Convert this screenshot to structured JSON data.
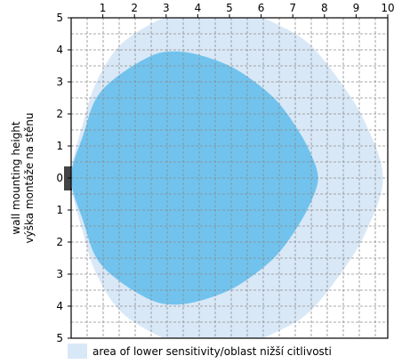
{
  "chart_data": {
    "type": "area",
    "x_ticks": [
      "1",
      "2",
      "3",
      "4",
      "5",
      "6",
      "7",
      "8",
      "9",
      "10"
    ],
    "y_ticks": [
      "5",
      "4",
      "3",
      "2",
      "1",
      "0",
      "1",
      "2",
      "3",
      "4",
      "5"
    ],
    "xlim": [
      0,
      10
    ],
    "ylim": [
      -5,
      5
    ],
    "grid": true,
    "ylabel_lines": [
      "wall mounting height",
      "výška montáže na stěnu"
    ],
    "series": [
      {
        "name": "area of lower sensitivity/oblast nižší citlivosti",
        "color": "#d9e8f7",
        "boundary": [
          [
            0.0,
            0.0
          ],
          [
            0.4,
            1.8
          ],
          [
            0.8,
            3.0
          ],
          [
            1.5,
            4.1
          ],
          [
            2.5,
            4.8
          ],
          [
            3.5,
            5.2
          ],
          [
            4.5,
            5.4
          ],
          [
            5.5,
            5.2
          ],
          [
            6.5,
            4.8
          ],
          [
            7.5,
            4.2
          ],
          [
            8.5,
            3.0
          ],
          [
            9.3,
            1.7
          ],
          [
            9.85,
            0.0
          ],
          [
            9.3,
            -1.7
          ],
          [
            8.5,
            -3.0
          ],
          [
            7.5,
            -4.2
          ],
          [
            6.5,
            -4.8
          ],
          [
            5.5,
            -5.2
          ],
          [
            4.5,
            -5.4
          ],
          [
            3.5,
            -5.2
          ],
          [
            2.5,
            -4.8
          ],
          [
            1.5,
            -4.1
          ],
          [
            0.8,
            -3.0
          ],
          [
            0.4,
            -1.8
          ]
        ]
      },
      {
        "color": "#71c3ee",
        "boundary": [
          [
            0.0,
            0.0
          ],
          [
            0.4,
            1.4
          ],
          [
            0.8,
            2.5
          ],
          [
            1.5,
            3.2
          ],
          [
            2.5,
            3.8
          ],
          [
            3.2,
            3.95
          ],
          [
            4.0,
            3.85
          ],
          [
            5.0,
            3.5
          ],
          [
            5.8,
            3.0
          ],
          [
            6.5,
            2.4
          ],
          [
            7.1,
            1.6
          ],
          [
            7.55,
            0.8
          ],
          [
            7.8,
            0.0
          ],
          [
            7.55,
            -0.8
          ],
          [
            7.1,
            -1.6
          ],
          [
            6.5,
            -2.4
          ],
          [
            5.8,
            -3.0
          ],
          [
            5.0,
            -3.5
          ],
          [
            4.0,
            -3.85
          ],
          [
            3.2,
            -3.95
          ],
          [
            2.5,
            -3.8
          ],
          [
            1.5,
            -3.2
          ],
          [
            0.8,
            -2.5
          ],
          [
            0.4,
            -1.4
          ]
        ]
      }
    ],
    "legend": {
      "label": "area of lower sensitivity/oblast nižší citlivosti",
      "placement": "bottom"
    }
  },
  "colors": {
    "lower_sensitivity": "#d9e8f7",
    "main_area": "#71c3ee",
    "grid": "#8c8c8c",
    "sensor": "#444444"
  }
}
